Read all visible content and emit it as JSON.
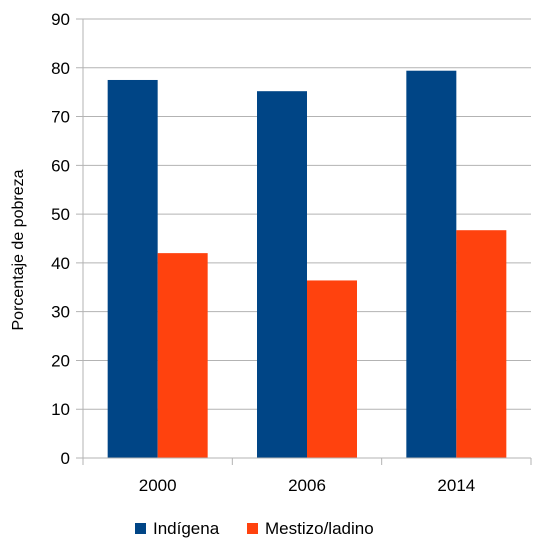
{
  "chart_data": {
    "type": "bar",
    "categories": [
      "2000",
      "2006",
      "2014"
    ],
    "series": [
      {
        "name": "Indígena",
        "color": "#004586",
        "values": [
          77.5,
          75.2,
          79.4
        ]
      },
      {
        "name": "Mestizo/ladino",
        "color": "#ff420e",
        "values": [
          42.0,
          36.4,
          46.7
        ]
      }
    ],
    "ylabel": "Porcentaje de pobreza",
    "xlabel": "",
    "ylim": [
      0,
      90
    ],
    "yticks": [
      0,
      10,
      20,
      30,
      40,
      50,
      60,
      70,
      80,
      90
    ],
    "grid": true,
    "legend_position": "bottom"
  }
}
